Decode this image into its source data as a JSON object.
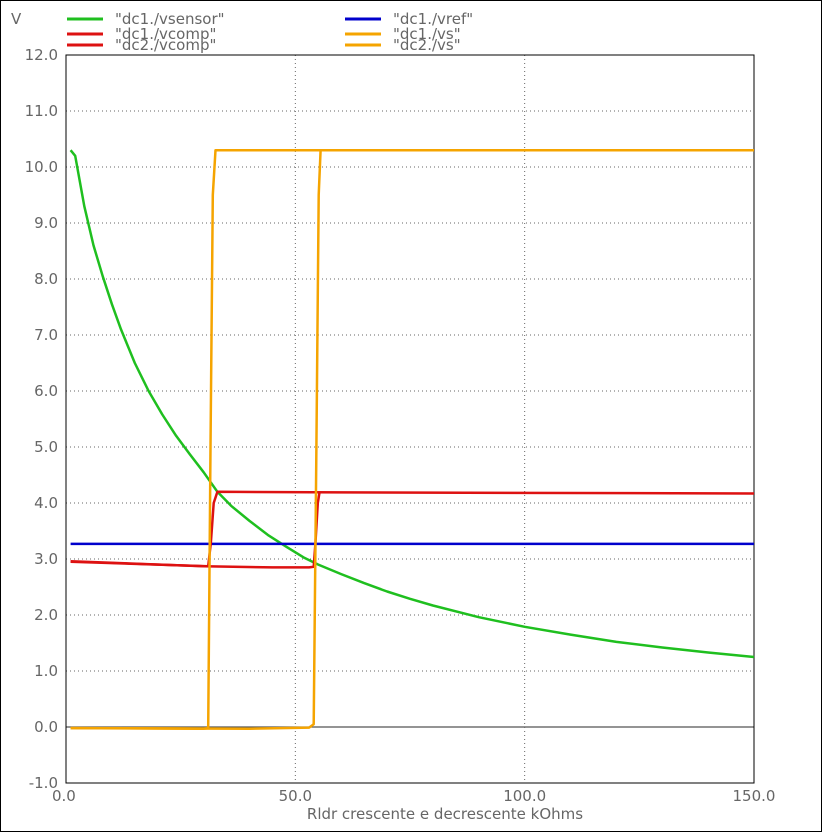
{
  "chart_data": {
    "type": "line",
    "ylabel": "V",
    "xlabel": "Rldr crescente e decrescente  kOhms",
    "xlim": [
      0,
      150
    ],
    "ylim": [
      -1,
      12
    ],
    "grid": true,
    "legend_position": "top",
    "x_ticks": [
      {
        "value": 0,
        "label": "0.0"
      },
      {
        "value": 50,
        "label": "50.0"
      },
      {
        "value": 100,
        "label": "100.0"
      },
      {
        "value": 150,
        "label": "150.0"
      }
    ],
    "y_ticks": [
      {
        "value": -1,
        "label": "-1.0"
      },
      {
        "value": 0,
        "label": "0.0"
      },
      {
        "value": 1,
        "label": "1.0"
      },
      {
        "value": 2,
        "label": "2.0"
      },
      {
        "value": 3,
        "label": "3.0"
      },
      {
        "value": 4,
        "label": "4.0"
      },
      {
        "value": 5,
        "label": "5.0"
      },
      {
        "value": 6,
        "label": "6.0"
      },
      {
        "value": 7,
        "label": "7.0"
      },
      {
        "value": 8,
        "label": "8.0"
      },
      {
        "value": 9,
        "label": "9.0"
      },
      {
        "value": 10,
        "label": "10.0"
      },
      {
        "value": 11,
        "label": "11.0"
      },
      {
        "value": 12,
        "label": "12.0"
      }
    ],
    "series": [
      {
        "name": "\"dc1./vsensor\"",
        "color": "#1fbf1f",
        "x": [
          1,
          2,
          4,
          6,
          8,
          10,
          12,
          15,
          18,
          21,
          24,
          27,
          30,
          33,
          36,
          40,
          44,
          48,
          52,
          55,
          60,
          65,
          70,
          75,
          80,
          90,
          100,
          110,
          120,
          130,
          140,
          150
        ],
        "y": [
          10.3,
          10.2,
          9.3,
          8.6,
          8.05,
          7.55,
          7.1,
          6.5,
          6.0,
          5.58,
          5.2,
          4.87,
          4.55,
          4.2,
          3.95,
          3.68,
          3.43,
          3.22,
          3.02,
          2.9,
          2.73,
          2.57,
          2.42,
          2.29,
          2.17,
          1.96,
          1.79,
          1.65,
          1.52,
          1.42,
          1.33,
          1.25
        ]
      },
      {
        "name": "\"dc1./vref\"",
        "color": "#0000cc",
        "x": [
          1,
          150
        ],
        "y": [
          3.27,
          3.27
        ]
      },
      {
        "name": "\"dc1./vcomp\"",
        "color": "#dd1111",
        "x": [
          1,
          20,
          31,
          31.6,
          32.2,
          33,
          60,
          150
        ],
        "y": [
          2.95,
          2.9,
          2.87,
          3.3,
          4.0,
          4.2,
          4.19,
          4.17
        ]
      },
      {
        "name": "\"dc2./vcomp\"",
        "color": "#dd1111",
        "x": [
          1,
          30,
          45,
          53,
          54,
          54.4,
          54.9,
          55.3
        ],
        "y": [
          2.96,
          2.87,
          2.85,
          2.85,
          2.86,
          3.3,
          4.0,
          4.2
        ]
      },
      {
        "name": "\"dc1./vs\"",
        "color": "#f5a400",
        "x": [
          1,
          30,
          31,
          31.5,
          32,
          32.6,
          150
        ],
        "y": [
          -0.02,
          -0.03,
          -0.02,
          5.0,
          9.5,
          10.3,
          10.3
        ]
      },
      {
        "name": "\"dc2./vs\"",
        "color": "#f5a400",
        "x": [
          1,
          40,
          53,
          54,
          54.6,
          55.1,
          55.5
        ],
        "y": [
          -0.02,
          -0.03,
          -0.01,
          0.05,
          5.0,
          9.5,
          10.3
        ]
      }
    ]
  }
}
